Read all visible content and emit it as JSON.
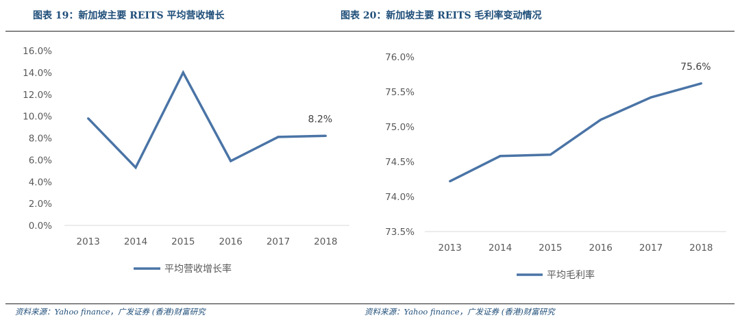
{
  "figures": {
    "left_title": "图表 19：新加坡主要 REITS 平均营收增长",
    "right_title": "图表 20：新加坡主要 REITS 毛利率变动情况",
    "left_source": "资料来源：Yahoo finance，广发证券 (香港)财富研究",
    "right_source": "资料来源：Yahoo finance，广发证券 (香港)财富研究"
  },
  "colors": {
    "series": "#4a74a6",
    "axis": "#d9d9d9",
    "title": "#1f4e79"
  },
  "chart_data": [
    {
      "type": "line",
      "title": "",
      "xlabel": "",
      "ylabel": "",
      "x": [
        "2013",
        "2014",
        "2015",
        "2016",
        "2017",
        "2018"
      ],
      "series": [
        {
          "name": "平均营收增长率",
          "values": [
            9.8,
            5.3,
            14.0,
            5.9,
            8.1,
            8.2
          ]
        }
      ],
      "yticks": [
        "0.0%",
        "2.0%",
        "4.0%",
        "6.0%",
        "8.0%",
        "10.0%",
        "12.0%",
        "14.0%",
        "16.0%"
      ],
      "ylim": [
        0,
        16
      ],
      "annotation": {
        "index": 5,
        "text": "8.2%"
      },
      "grid": false,
      "legend": "bottom"
    },
    {
      "type": "line",
      "title": "",
      "xlabel": "",
      "ylabel": "",
      "x": [
        "2013",
        "2014",
        "2015",
        "2016",
        "2017",
        "2018"
      ],
      "series": [
        {
          "name": "平均毛利率",
          "values": [
            74.22,
            74.58,
            74.6,
            75.1,
            75.42,
            75.62
          ]
        }
      ],
      "yticks": [
        "73.5%",
        "74.0%",
        "74.5%",
        "75.0%",
        "75.5%",
        "76.0%"
      ],
      "ylim": [
        73.5,
        76.0
      ],
      "annotation": {
        "index": 5,
        "text": "75.6%"
      },
      "grid": false,
      "legend": "bottom"
    }
  ]
}
